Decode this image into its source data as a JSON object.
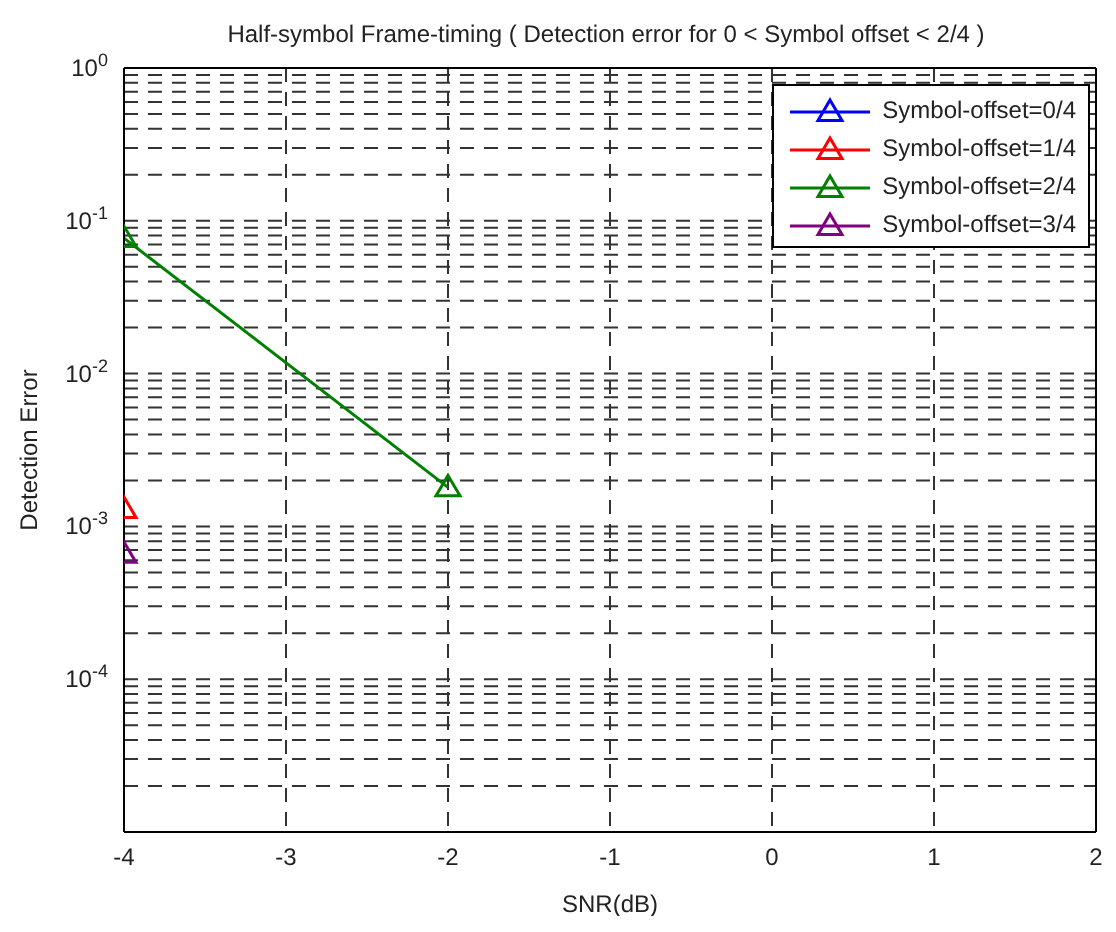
{
  "chart_data": {
    "type": "line",
    "title": "Half-symbol Frame-timing ( Detection error for 0 < Symbol offset < 2/4 )",
    "xlabel": "SNR(dB)",
    "ylabel": "Detection Error",
    "x": [
      -4,
      -2
    ],
    "series": [
      {
        "name": "Symbol-offset=0/4",
        "color": "#0000ff",
        "values": [
          null,
          null
        ]
      },
      {
        "name": "Symbol-offset=1/4",
        "color": "#ff0000",
        "values": [
          0.0013,
          null
        ]
      },
      {
        "name": "Symbol-offset=2/4",
        "color": "#008000",
        "values": [
          0.077,
          0.0018
        ]
      },
      {
        "name": "Symbol-offset=3/4",
        "color": "#800080",
        "values": [
          0.00066,
          null
        ]
      }
    ],
    "log": "y",
    "xlim": [
      -4,
      2
    ],
    "xticks": [
      -4,
      -3,
      -2,
      -1,
      0,
      1,
      2
    ],
    "ylim": [
      1e-05,
      1
    ],
    "yticks": [
      {
        "value": 1e-05,
        "label": null
      },
      {
        "value": 2e-05,
        "label": null
      },
      {
        "value": 3e-05,
        "label": null
      },
      {
        "value": 4e-05,
        "label": null
      },
      {
        "value": 5e-05,
        "label": null
      },
      {
        "value": 6e-05,
        "label": null
      },
      {
        "value": 7e-05,
        "label": null
      },
      {
        "value": 8e-05,
        "label": null
      },
      {
        "value": 9e-05,
        "label": null
      },
      {
        "value": 0.0001,
        "label": "10$^{-4}$"
      },
      {
        "value": 0.0002,
        "label": null
      },
      {
        "value": 0.0003,
        "label": null
      },
      {
        "value": 0.0004,
        "label": null
      },
      {
        "value": 0.0005,
        "label": null
      },
      {
        "value": 0.0006,
        "label": null
      },
      {
        "value": 0.0007,
        "label": null
      },
      {
        "value": 0.0008,
        "label": null
      },
      {
        "value": 0.0009,
        "label": null
      },
      {
        "value": 0.001,
        "label": "10$^{-3}$"
      },
      {
        "value": 0.002,
        "label": null
      },
      {
        "value": 0.003,
        "label": null
      },
      {
        "value": 0.004,
        "label": null
      },
      {
        "value": 0.005,
        "label": null
      },
      {
        "value": 0.006,
        "label": null
      },
      {
        "value": 0.007,
        "label": null
      },
      {
        "value": 0.008,
        "label": null
      },
      {
        "value": 0.009,
        "label": null
      },
      {
        "value": 0.01,
        "label": "10$^{-2}$"
      },
      {
        "value": 0.02,
        "label": null
      },
      {
        "value": 0.03,
        "label": null
      },
      {
        "value": 0.04,
        "label": null
      },
      {
        "value": 0.05,
        "label": null
      },
      {
        "value": 0.06,
        "label": null
      },
      {
        "value": 0.07,
        "label": null
      },
      {
        "value": 0.08,
        "label": null
      },
      {
        "value": 0.09,
        "label": null
      },
      {
        "value": 0.1,
        "label": "10$^{-1}$"
      },
      {
        "value": 0.2,
        "label": null
      },
      {
        "value": 0.3,
        "label": null
      },
      {
        "value": 0.4,
        "label": null
      },
      {
        "value": 0.5,
        "label": null
      },
      {
        "value": 0.6,
        "label": null
      },
      {
        "value": 0.7,
        "label": null
      },
      {
        "value": 0.8,
        "label": null
      },
      {
        "value": 0.9,
        "label": null
      },
      {
        "value": 1,
        "label": "10$^{0}$"
      }
    ],
    "grid": true,
    "legend": "top right",
    "marker": "triangle",
    "line_style": "solid"
  }
}
